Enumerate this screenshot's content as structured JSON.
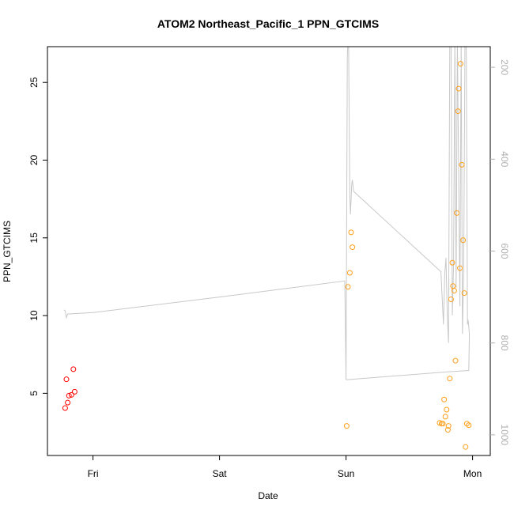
{
  "chart_data": {
    "type": "scatter",
    "title": "ATOM2 Northeast_Pacific_1 PPN_GTCIMS",
    "xlabel": "Date",
    "ylabel": "PPN_GTCIMS",
    "x_tick_labels": [
      "Fri",
      "Sat",
      "Sun",
      "Mon"
    ],
    "x_unit": "day",
    "x_ticks": [
      1,
      2,
      3,
      4
    ],
    "xlim": [
      0.64,
      4.14
    ],
    "ylim": [
      1.0,
      27.3
    ],
    "y_ticks": [
      5,
      10,
      15,
      20,
      25
    ],
    "y2_ticks": [
      200,
      400,
      600,
      800,
      1000
    ],
    "y2_inverted": true,
    "y2lim": [
      1045,
      155
    ],
    "grid": false,
    "colors": {
      "series_red": "#ff0000",
      "series_orange": "#ff9f1a",
      "altitude_line": "#c8c8c8",
      "right_axis": "#b0b0b0",
      "axes": "#000000"
    },
    "series": [
      {
        "color": "red",
        "points": [
          {
            "x": 0.78,
            "y": 4.05
          },
          {
            "x": 0.79,
            "y": 5.9
          },
          {
            "x": 0.8,
            "y": 4.4
          },
          {
            "x": 0.81,
            "y": 4.85
          },
          {
            "x": 0.83,
            "y": 4.9
          },
          {
            "x": 0.845,
            "y": 6.55
          },
          {
            "x": 0.855,
            "y": 5.1
          }
        ]
      },
      {
        "color": "orange",
        "points": [
          {
            "x": 3.005,
            "y": 2.9
          },
          {
            "x": 3.015,
            "y": 11.85
          },
          {
            "x": 3.03,
            "y": 12.75
          },
          {
            "x": 3.04,
            "y": 15.35
          },
          {
            "x": 3.05,
            "y": 14.4
          },
          {
            "x": 3.74,
            "y": 3.1
          },
          {
            "x": 3.755,
            "y": 3.05
          },
          {
            "x": 3.765,
            "y": 3.05
          },
          {
            "x": 3.775,
            "y": 4.6
          },
          {
            "x": 3.785,
            "y": 3.5
          },
          {
            "x": 3.795,
            "y": 3.95
          },
          {
            "x": 3.805,
            "y": 2.65
          },
          {
            "x": 3.81,
            "y": 2.9
          },
          {
            "x": 3.82,
            "y": 5.95
          },
          {
            "x": 3.83,
            "y": 11.05
          },
          {
            "x": 3.84,
            "y": 13.4
          },
          {
            "x": 3.845,
            "y": 11.9
          },
          {
            "x": 3.855,
            "y": 11.6
          },
          {
            "x": 3.865,
            "y": 7.1
          },
          {
            "x": 3.875,
            "y": 16.6
          },
          {
            "x": 3.885,
            "y": 23.15
          },
          {
            "x": 3.89,
            "y": 24.6
          },
          {
            "x": 3.9,
            "y": 13.05
          },
          {
            "x": 3.905,
            "y": 26.2
          },
          {
            "x": 3.915,
            "y": 19.7
          },
          {
            "x": 3.925,
            "y": 14.85
          },
          {
            "x": 3.935,
            "y": 11.45
          },
          {
            "x": 3.945,
            "y": 1.55
          },
          {
            "x": 3.955,
            "y": 3.05
          },
          {
            "x": 3.97,
            "y": 2.95
          }
        ]
      }
    ],
    "altitude_line": [
      [
        0.77,
        728
      ],
      [
        0.78,
        730
      ],
      [
        0.79,
        745
      ],
      [
        0.8,
        737
      ],
      [
        1.0,
        734
      ],
      [
        2.0,
        700
      ],
      [
        2.99,
        665
      ],
      [
        3.0,
        880
      ],
      [
        3.01,
        180
      ],
      [
        3.015,
        140
      ],
      [
        3.02,
        140
      ],
      [
        3.03,
        480
      ],
      [
        3.035,
        520
      ],
      [
        3.045,
        455
      ],
      [
        3.05,
        445
      ],
      [
        3.06,
        470
      ],
      [
        3.75,
        645
      ],
      [
        3.77,
        760
      ],
      [
        3.78,
        650
      ],
      [
        3.79,
        615
      ],
      [
        3.8,
        740
      ],
      [
        3.81,
        800
      ],
      [
        3.82,
        140
      ],
      [
        3.83,
        140
      ],
      [
        3.84,
        740
      ],
      [
        3.85,
        630
      ],
      [
        3.86,
        140
      ],
      [
        3.87,
        680
      ],
      [
        3.88,
        140
      ],
      [
        3.9,
        720
      ],
      [
        3.91,
        140
      ],
      [
        3.92,
        780
      ],
      [
        3.93,
        640
      ],
      [
        3.94,
        140
      ],
      [
        3.95,
        140
      ],
      [
        3.96,
        760
      ],
      [
        3.965,
        750
      ],
      [
        3.975,
        780
      ],
      [
        3.97,
        860
      ],
      [
        3.8,
        863
      ],
      [
        3.0,
        880
      ]
    ]
  }
}
